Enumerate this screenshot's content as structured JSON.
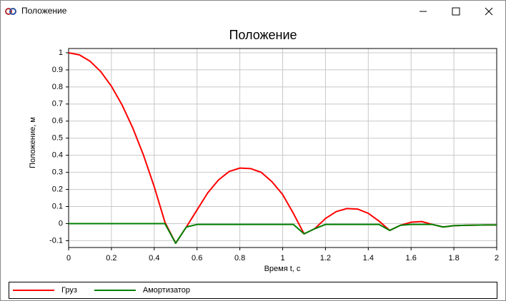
{
  "window": {
    "title": "Положение"
  },
  "chart_data": {
    "type": "line",
    "title": "Положение",
    "x_label": "Время t, с",
    "y_label": "Положение, м",
    "x": [
      0,
      0.05,
      0.1,
      0.15,
      0.2,
      0.25,
      0.3,
      0.35,
      0.4,
      0.45,
      0.5,
      0.55,
      0.6,
      0.65,
      0.7,
      0.75,
      0.8,
      0.85,
      0.9,
      0.95,
      1.0,
      1.05,
      1.1,
      1.15,
      1.2,
      1.25,
      1.3,
      1.35,
      1.4,
      1.45,
      1.5,
      1.55,
      1.6,
      1.65,
      1.7,
      1.75,
      1.8,
      1.85,
      1.9,
      1.95,
      2.0
    ],
    "series": [
      {
        "name": "Груз",
        "color": "#ff0000",
        "values": [
          1,
          0.988,
          0.951,
          0.89,
          0.804,
          0.694,
          0.559,
          0.4,
          0.216,
          0.008,
          -0.115,
          -0.02,
          0.08,
          0.18,
          0.255,
          0.305,
          0.325,
          0.322,
          0.3,
          0.245,
          0.17,
          0.06,
          -0.06,
          -0.03,
          0.03,
          0.07,
          0.088,
          0.085,
          0.06,
          0.015,
          -0.04,
          -0.01,
          0.008,
          0.012,
          -0.005,
          -0.02,
          -0.012,
          -0.01,
          -0.009,
          -0.008,
          -0.008
        ]
      },
      {
        "name": "Амортизатор",
        "color": "#007f00",
        "values": [
          0,
          0,
          0,
          0,
          0,
          0,
          0,
          0,
          0,
          0,
          -0.115,
          -0.02,
          -0.005,
          -0.005,
          -0.005,
          -0.005,
          -0.005,
          -0.005,
          -0.005,
          -0.005,
          -0.005,
          -0.005,
          -0.06,
          -0.03,
          -0.005,
          -0.005,
          -0.005,
          -0.005,
          -0.005,
          -0.005,
          -0.04,
          -0.01,
          -0.005,
          -0.005,
          -0.005,
          -0.02,
          -0.012,
          -0.01,
          -0.009,
          -0.008,
          -0.008
        ]
      }
    ],
    "xlim": [
      0,
      2
    ],
    "xticks": [
      0,
      0.2,
      0.4,
      0.6,
      0.8,
      1,
      1.2,
      1.4,
      1.6,
      1.8,
      2
    ],
    "ylim": [
      -0.14,
      1.025
    ],
    "yticks": [
      -0.1,
      0,
      0.1,
      0.2,
      0.3,
      0.4,
      0.5,
      0.6,
      0.7,
      0.8,
      0.9,
      1
    ],
    "grid": true,
    "legend": "bottom"
  }
}
